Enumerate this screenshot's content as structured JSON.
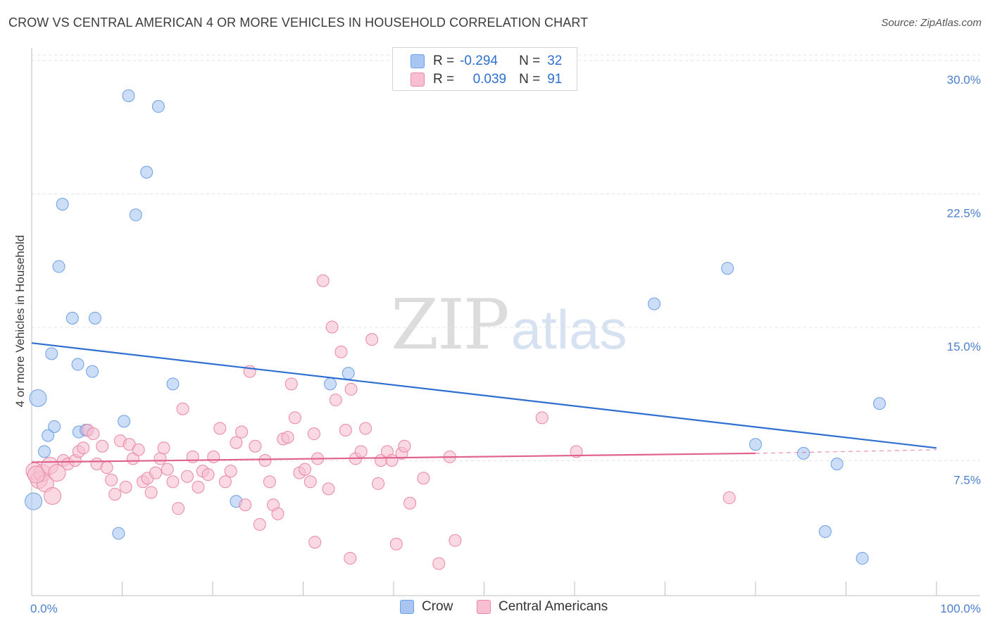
{
  "header": {
    "title": "CROW VS CENTRAL AMERICAN 4 OR MORE VEHICLES IN HOUSEHOLD CORRELATION CHART",
    "source": "Source: ZipAtlas.com"
  },
  "watermark": {
    "zip": "ZIP",
    "atlas": "atlas"
  },
  "legend": {
    "rows": [
      {
        "r_label": "R =",
        "r_value": "-0.294",
        "n_label": "N =",
        "n_value": "32",
        "color": "#a9c6f2",
        "border": "#6c9fe6"
      },
      {
        "r_label": "R =",
        "r_value": "0.039",
        "n_label": "N =",
        "n_value": "91",
        "color": "#f7bfd1",
        "border": "#ea86a6"
      }
    ]
  },
  "bottom_legend": {
    "items": [
      {
        "label": "Crow",
        "color": "#a9c6f2",
        "border": "#6c9fe6"
      },
      {
        "label": "Central Americans",
        "color": "#f7bfd1",
        "border": "#ea86a6"
      }
    ]
  },
  "chart_data": {
    "type": "scatter",
    "title": "CROW VS CENTRAL AMERICAN 4 OR MORE VEHICLES IN HOUSEHOLD CORRELATION CHART",
    "ylabel": "4 or more Vehicles in Household",
    "xlim": [
      0,
      100
    ],
    "ylim": [
      0,
      30
    ],
    "x_ticks": [
      "0.0%",
      "100.0%"
    ],
    "y_ticks": [
      {
        "value": 7.5,
        "label": "7.5%"
      },
      {
        "value": 15.0,
        "label": "15.0%"
      },
      {
        "value": 22.5,
        "label": "22.5%"
      },
      {
        "value": 30.0,
        "label": "30.0%"
      }
    ],
    "grid": true,
    "legend_placement": "top-center",
    "series": [
      {
        "name": "Crow",
        "color": "#a9c6f2",
        "stroke": "#6c9fe6",
        "trend": {
          "x": [
            0,
            100
          ],
          "y": [
            14.2,
            8.3
          ],
          "color": "#2f6fd1"
        },
        "points": [
          [
            10.7,
            28.1
          ],
          [
            14.0,
            27.5
          ],
          [
            12.7,
            23.8
          ],
          [
            3.4,
            22.0
          ],
          [
            11.5,
            21.4
          ],
          [
            3.0,
            18.5
          ],
          [
            4.5,
            15.6
          ],
          [
            7.0,
            15.6
          ],
          [
            2.2,
            13.6
          ],
          [
            5.1,
            13.0
          ],
          [
            6.7,
            12.6
          ],
          [
            15.6,
            11.9
          ],
          [
            33.0,
            11.9
          ],
          [
            35.0,
            12.5
          ],
          [
            0.7,
            11.1
          ],
          [
            2.5,
            9.5
          ],
          [
            1.8,
            9.0
          ],
          [
            5.2,
            9.2
          ],
          [
            6.0,
            9.3
          ],
          [
            10.2,
            9.8
          ],
          [
            1.4,
            8.1
          ],
          [
            0.2,
            5.3
          ],
          [
            22.6,
            5.3
          ],
          [
            9.6,
            3.5
          ],
          [
            76.9,
            18.4
          ],
          [
            68.8,
            16.4
          ],
          [
            93.7,
            10.8
          ],
          [
            80.0,
            8.5
          ],
          [
            85.3,
            8.0
          ],
          [
            89.0,
            7.4
          ],
          [
            87.7,
            3.6
          ],
          [
            91.8,
            2.1
          ]
        ]
      },
      {
        "name": "Central Americans",
        "color": "#f7bfd1",
        "stroke": "#ea86a6",
        "trend": {
          "x": [
            0,
            80
          ],
          "y": [
            7.5,
            8.0
          ],
          "color": "#e0628e",
          "dash_x": [
            80,
            100
          ],
          "dash_y": [
            8.0,
            8.2
          ]
        },
        "points": [
          [
            0.3,
            7.0
          ],
          [
            0.8,
            6.5
          ],
          [
            1.2,
            6.9
          ],
          [
            1.5,
            6.3
          ],
          [
            2.0,
            7.3
          ],
          [
            2.3,
            5.6
          ],
          [
            2.8,
            6.9
          ],
          [
            3.5,
            7.6
          ],
          [
            4.0,
            7.4
          ],
          [
            4.8,
            7.6
          ],
          [
            5.2,
            8.1
          ],
          [
            5.7,
            8.3
          ],
          [
            6.2,
            9.3
          ],
          [
            6.8,
            9.1
          ],
          [
            7.2,
            7.4
          ],
          [
            7.8,
            8.4
          ],
          [
            8.3,
            7.2
          ],
          [
            8.8,
            6.5
          ],
          [
            9.2,
            5.7
          ],
          [
            9.8,
            8.7
          ],
          [
            10.4,
            6.1
          ],
          [
            10.8,
            8.5
          ],
          [
            11.2,
            7.7
          ],
          [
            11.8,
            8.2
          ],
          [
            12.3,
            6.4
          ],
          [
            12.8,
            6.6
          ],
          [
            13.2,
            5.8
          ],
          [
            13.7,
            6.9
          ],
          [
            14.2,
            7.7
          ],
          [
            14.6,
            8.3
          ],
          [
            15.0,
            7.1
          ],
          [
            15.6,
            6.4
          ],
          [
            16.2,
            4.9
          ],
          [
            16.7,
            10.5
          ],
          [
            17.2,
            6.7
          ],
          [
            17.8,
            7.8
          ],
          [
            18.4,
            6.1
          ],
          [
            18.9,
            7.0
          ],
          [
            19.5,
            6.8
          ],
          [
            20.1,
            7.8
          ],
          [
            20.8,
            9.4
          ],
          [
            21.4,
            6.4
          ],
          [
            22.0,
            7.0
          ],
          [
            22.6,
            8.6
          ],
          [
            23.2,
            9.2
          ],
          [
            23.6,
            5.1
          ],
          [
            24.1,
            12.6
          ],
          [
            24.7,
            8.4
          ],
          [
            25.2,
            4.0
          ],
          [
            25.8,
            7.6
          ],
          [
            26.3,
            6.4
          ],
          [
            26.7,
            5.1
          ],
          [
            27.2,
            4.6
          ],
          [
            27.8,
            8.8
          ],
          [
            28.3,
            8.9
          ],
          [
            28.7,
            11.9
          ],
          [
            29.1,
            10.0
          ],
          [
            29.6,
            6.9
          ],
          [
            30.2,
            7.1
          ],
          [
            30.8,
            6.4
          ],
          [
            31.2,
            9.1
          ],
          [
            31.6,
            7.7
          ],
          [
            32.2,
            17.7
          ],
          [
            32.8,
            6.0
          ],
          [
            33.2,
            15.1
          ],
          [
            33.6,
            11.0
          ],
          [
            34.2,
            13.7
          ],
          [
            34.7,
            9.3
          ],
          [
            35.3,
            11.6
          ],
          [
            35.8,
            7.7
          ],
          [
            36.4,
            8.1
          ],
          [
            36.9,
            9.4
          ],
          [
            37.6,
            14.4
          ],
          [
            38.3,
            6.3
          ],
          [
            38.6,
            7.6
          ],
          [
            39.3,
            8.1
          ],
          [
            39.8,
            7.6
          ],
          [
            40.3,
            2.9
          ],
          [
            40.9,
            8.0
          ],
          [
            41.2,
            8.4
          ],
          [
            41.8,
            5.2
          ],
          [
            43.3,
            6.6
          ],
          [
            45.0,
            1.8
          ],
          [
            46.2,
            7.8
          ],
          [
            46.8,
            3.1
          ],
          [
            56.4,
            10.0
          ],
          [
            60.2,
            8.1
          ],
          [
            77.1,
            5.5
          ],
          [
            35.2,
            2.1
          ],
          [
            31.3,
            3.0
          ],
          [
            0.5,
            6.8
          ]
        ]
      }
    ]
  }
}
